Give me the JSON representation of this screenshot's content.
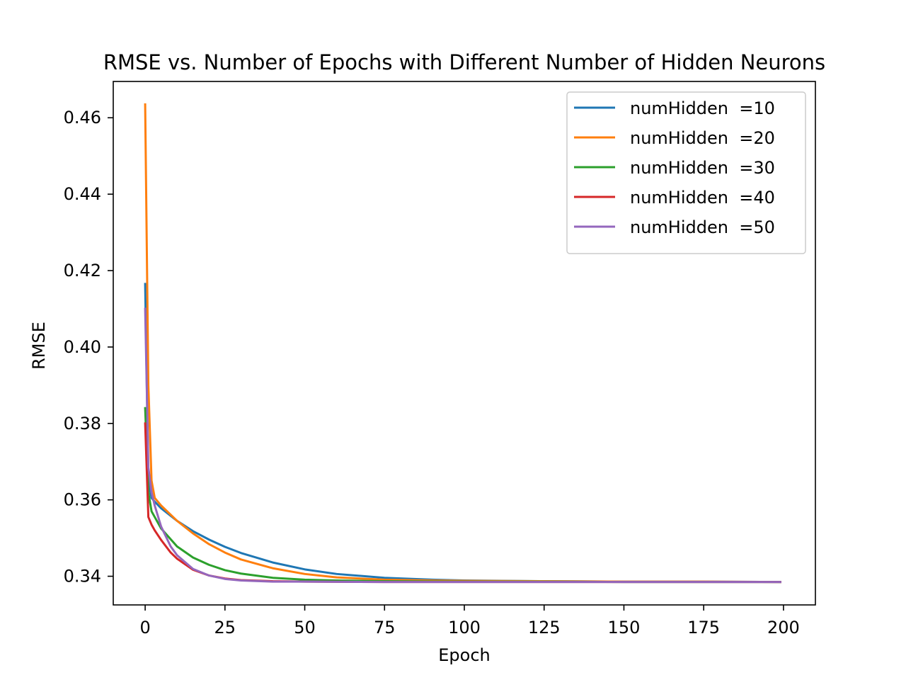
{
  "chart_data": {
    "type": "line",
    "title": "RMSE vs. Number of Epochs with Different Number of Hidden Neurons",
    "xlabel": "Epoch",
    "ylabel": "RMSE",
    "xlim": [
      -10,
      210
    ],
    "ylim": [
      0.3325,
      0.4695
    ],
    "xticks": [
      0,
      25,
      50,
      75,
      100,
      125,
      150,
      175,
      200
    ],
    "yticks": [
      0.34,
      0.36,
      0.38,
      0.4,
      0.42,
      0.44,
      0.46
    ],
    "ytick_labels": [
      "0.34",
      "0.36",
      "0.38",
      "0.40",
      "0.42",
      "0.44",
      "0.46"
    ],
    "grid": false,
    "legend_position": "top-right",
    "series": [
      {
        "name": "numHidden  =10",
        "color": "#1f77b4",
        "x": [
          0,
          1,
          2,
          3,
          5,
          10,
          15,
          20,
          25,
          30,
          40,
          50,
          60,
          75,
          90,
          100,
          125,
          150,
          175,
          199
        ],
        "y": [
          0.4165,
          0.365,
          0.3605,
          0.3595,
          0.3578,
          0.3545,
          0.3518,
          0.3496,
          0.3477,
          0.3461,
          0.3436,
          0.3418,
          0.3406,
          0.3396,
          0.3391,
          0.3389,
          0.3387,
          0.3386,
          0.3386,
          0.3385
        ]
      },
      {
        "name": "numHidden  =20",
        "color": "#ff7f0e",
        "x": [
          0,
          1,
          2,
          3,
          5,
          10,
          15,
          20,
          25,
          30,
          40,
          50,
          60,
          75,
          90,
          100,
          125,
          150,
          175,
          199
        ],
        "y": [
          0.4635,
          0.39,
          0.365,
          0.3605,
          0.3585,
          0.3545,
          0.3512,
          0.3484,
          0.3462,
          0.3444,
          0.3421,
          0.3406,
          0.3397,
          0.3391,
          0.3389,
          0.3388,
          0.3387,
          0.3386,
          0.3386,
          0.3385
        ]
      },
      {
        "name": "numHidden  =30",
        "color": "#2ca02c",
        "x": [
          0,
          1,
          2,
          3,
          5,
          10,
          15,
          20,
          25,
          30,
          40,
          50,
          60,
          75,
          100,
          125,
          150,
          175,
          199
        ],
        "y": [
          0.384,
          0.362,
          0.357,
          0.3555,
          0.3525,
          0.3478,
          0.3449,
          0.343,
          0.3416,
          0.3407,
          0.3396,
          0.3391,
          0.3389,
          0.3387,
          0.3386,
          0.3386,
          0.3385,
          0.3385,
          0.3385
        ]
      },
      {
        "name": "numHidden  =40",
        "color": "#d62728",
        "x": [
          0,
          1,
          2,
          3,
          5,
          8,
          10,
          15,
          20,
          25,
          30,
          40,
          50,
          75,
          100,
          150,
          199
        ],
        "y": [
          0.38,
          0.3555,
          0.3535,
          0.352,
          0.3495,
          0.3462,
          0.3446,
          0.3417,
          0.3402,
          0.3394,
          0.339,
          0.3387,
          0.3386,
          0.3385,
          0.3385,
          0.3385,
          0.3385
        ]
      },
      {
        "name": "numHidden  =50",
        "color": "#9467bd",
        "x": [
          0,
          1,
          2,
          3,
          5,
          8,
          10,
          15,
          20,
          25,
          30,
          40,
          50,
          75,
          100,
          150,
          199
        ],
        "y": [
          0.41,
          0.3685,
          0.362,
          0.3585,
          0.353,
          0.3478,
          0.3455,
          0.3419,
          0.3402,
          0.3393,
          0.3389,
          0.3386,
          0.3386,
          0.3385,
          0.3385,
          0.3385,
          0.3385
        ]
      }
    ]
  }
}
